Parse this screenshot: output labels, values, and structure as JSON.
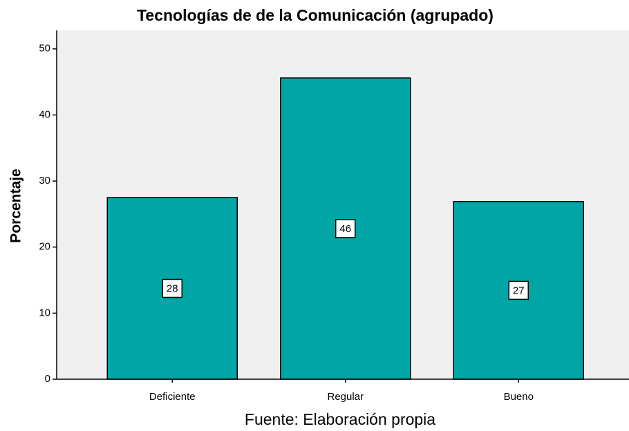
{
  "chart_data": {
    "type": "bar",
    "title": "Tecnologías de de la Comunicación (agrupado)",
    "y_label": "Porcentaje",
    "source": "Fuente: Elaboración propia",
    "categories": [
      "Deficiente",
      "Regular",
      "Bueno"
    ],
    "values": [
      27.5,
      45.6,
      26.9
    ],
    "value_labels": [
      "28",
      "46",
      "27"
    ],
    "color": "#00a5a5",
    "ylim": [
      0,
      52.8
    ],
    "yticks": [
      0,
      10,
      20,
      30,
      40,
      50
    ],
    "grid": false
  }
}
